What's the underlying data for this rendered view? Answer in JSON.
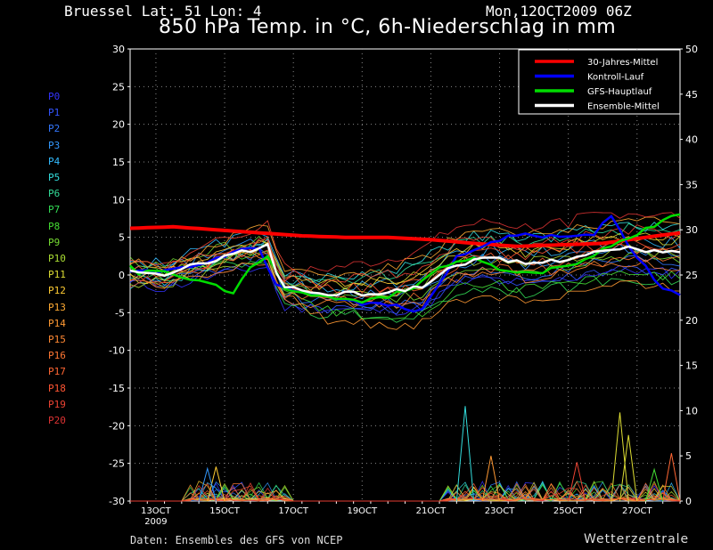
{
  "header": {
    "station": "Bruessel  Lat: 51 Lon: 4",
    "stamp": "Mon,12OCT2009 06Z",
    "title": "850 hPa Temp. in °C, 6h-Niederschlag in mm"
  },
  "footer": {
    "source": "Daten: Ensembles des GFS von NCEP",
    "brand": "Wetterzentrale"
  },
  "members": [
    {
      "label": "P0",
      "color": "#3333ff"
    },
    {
      "label": "P1",
      "color": "#3355ff"
    },
    {
      "label": "P2",
      "color": "#3377ff"
    },
    {
      "label": "P3",
      "color": "#3399ff"
    },
    {
      "label": "P4",
      "color": "#33bbff"
    },
    {
      "label": "P5",
      "color": "#33dddd"
    },
    {
      "label": "P6",
      "color": "#33dd99"
    },
    {
      "label": "P7",
      "color": "#33dd55"
    },
    {
      "label": "P8",
      "color": "#44dd33"
    },
    {
      "label": "P9",
      "color": "#77dd33"
    },
    {
      "label": "P10",
      "color": "#aadd33"
    },
    {
      "label": "P11",
      "color": "#dddd33"
    },
    {
      "label": "P12",
      "color": "#ffcc33"
    },
    {
      "label": "P13",
      "color": "#ffaa33"
    },
    {
      "label": "P14",
      "color": "#ff9933"
    },
    {
      "label": "P15",
      "color": "#ff8833"
    },
    {
      "label": "P16",
      "color": "#ff7733"
    },
    {
      "label": "P17",
      "color": "#ff6633"
    },
    {
      "label": "P18",
      "color": "#ff5533"
    },
    {
      "label": "P19",
      "color": "#ee4433"
    },
    {
      "label": "P20",
      "color": "#dd3333"
    }
  ],
  "chart_data": {
    "type": "line",
    "x_ticks": [
      "13OCT",
      "15OCT",
      "17OCT",
      "19OCT",
      "21OCT",
      "23OCT",
      "25OCT",
      "27OCT"
    ],
    "x_tick_sub": "2009",
    "x_start": "12OCT2009 06Z",
    "x_step_hours": 6,
    "x_range_hours": [
      0,
      384
    ],
    "y_left": {
      "min": -30,
      "max": 30,
      "step": 5
    },
    "y_right": {
      "min": 0,
      "max": 50,
      "step": 5
    },
    "grid": true,
    "legend": {
      "placement": "top-right",
      "entries": [
        {
          "name": "30-Jahres-Mittel",
          "color": "#ff0000"
        },
        {
          "name": "Kontroll-Lauf",
          "color": "#0000ff"
        },
        {
          "name": "GFS-Hauptlauf",
          "color": "#00dd00"
        },
        {
          "name": "Ensemble-Mittel",
          "color": "#ffffff"
        }
      ]
    },
    "series": [
      {
        "name": "30-Jahres-Mittel",
        "axis": "left",
        "color": "#ff0000",
        "knots": [
          [
            0,
            6.2
          ],
          [
            30,
            6.4
          ],
          [
            60,
            6.0
          ],
          [
            90,
            5.6
          ],
          [
            120,
            5.2
          ],
          [
            150,
            5.0
          ],
          [
            180,
            5.0
          ],
          [
            210,
            4.7
          ],
          [
            240,
            4.2
          ],
          [
            270,
            3.8
          ],
          [
            300,
            4.0
          ],
          [
            330,
            4.2
          ],
          [
            360,
            5.0
          ],
          [
            384,
            5.6
          ]
        ]
      },
      {
        "name": "Kontroll-Lauf",
        "axis": "left",
        "color": "#0000ff",
        "knots": [
          [
            0,
            0.2
          ],
          [
            24,
            0.5
          ],
          [
            48,
            1.2
          ],
          [
            72,
            3.0
          ],
          [
            90,
            3.5
          ],
          [
            102,
            -1.5
          ],
          [
            120,
            -2.5
          ],
          [
            150,
            -3.5
          ],
          [
            180,
            -4.0
          ],
          [
            204,
            -4.8
          ],
          [
            228,
            2.5
          ],
          [
            252,
            4.5
          ],
          [
            276,
            5.5
          ],
          [
            300,
            5.0
          ],
          [
            324,
            5.5
          ],
          [
            336,
            8.0
          ],
          [
            348,
            4.0
          ],
          [
            372,
            -2.0
          ],
          [
            384,
            -2.5
          ]
        ]
      },
      {
        "name": "GFS-Hauptlauf",
        "axis": "left",
        "color": "#00dd00",
        "knots": [
          [
            0,
            1.0
          ],
          [
            6,
            -0.2
          ],
          [
            18,
            0.8
          ],
          [
            36,
            -0.5
          ],
          [
            54,
            -1.0
          ],
          [
            72,
            -2.5
          ],
          [
            84,
            0.8
          ],
          [
            96,
            2.5
          ],
          [
            108,
            -2.0
          ],
          [
            132,
            -3.0
          ],
          [
            156,
            -3.5
          ],
          [
            180,
            -3.0
          ],
          [
            204,
            -1.0
          ],
          [
            216,
            1.0
          ],
          [
            240,
            2.5
          ],
          [
            252,
            1.5
          ],
          [
            264,
            0.3
          ],
          [
            288,
            0.5
          ],
          [
            312,
            1.5
          ],
          [
            336,
            4.0
          ],
          [
            360,
            6.0
          ],
          [
            384,
            8.2
          ]
        ]
      },
      {
        "name": "Ensemble-Mittel",
        "axis": "left",
        "color": "#ffffff",
        "knots": [
          [
            0,
            0.3
          ],
          [
            24,
            0.0
          ],
          [
            48,
            1.5
          ],
          [
            72,
            2.8
          ],
          [
            96,
            3.8
          ],
          [
            102,
            0.5
          ],
          [
            108,
            -1.5
          ],
          [
            132,
            -2.5
          ],
          [
            156,
            -2.5
          ],
          [
            180,
            -2.3
          ],
          [
            204,
            -1.5
          ],
          [
            228,
            1.5
          ],
          [
            252,
            2.2
          ],
          [
            276,
            1.5
          ],
          [
            300,
            2.0
          ],
          [
            324,
            3.0
          ],
          [
            348,
            3.5
          ],
          [
            372,
            3.0
          ],
          [
            384,
            3.0
          ]
        ]
      }
    ],
    "precip_peaks_mm": [
      {
        "member": "P5",
        "hour": 234,
        "value": 10.5
      },
      {
        "member": "P11",
        "hour": 342,
        "value": 9.8
      },
      {
        "member": "P11",
        "hour": 348,
        "value": 7.3
      },
      {
        "member": "P17",
        "hour": 378,
        "value": 5.3
      },
      {
        "member": "P14",
        "hour": 252,
        "value": 5.0
      },
      {
        "member": "P12",
        "hour": 60,
        "value": 3.8
      },
      {
        "member": "P3",
        "hour": 54,
        "value": 3.6
      },
      {
        "member": "P19",
        "hour": 312,
        "value": 4.3
      },
      {
        "member": "P8",
        "hour": 366,
        "value": 3.5
      }
    ]
  }
}
